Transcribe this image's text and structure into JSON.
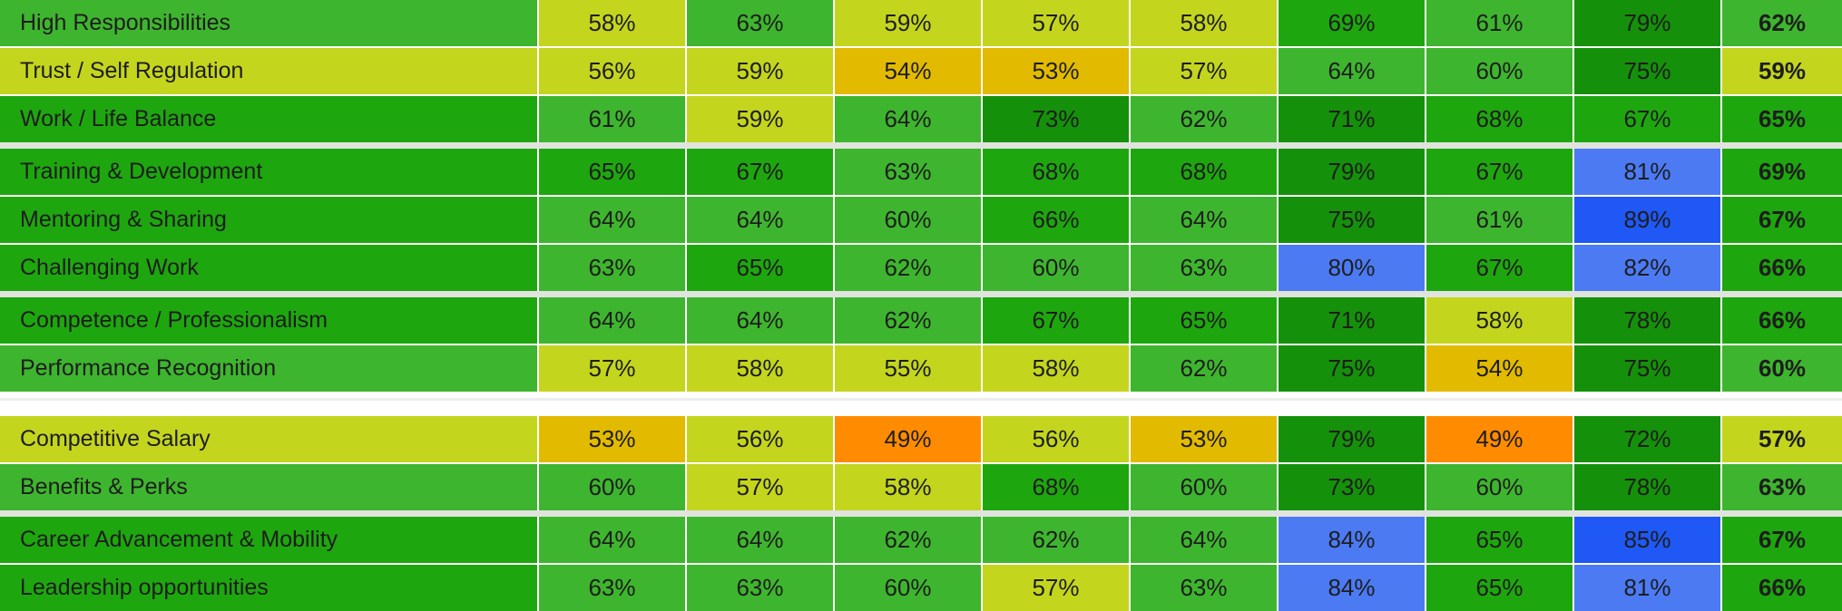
{
  "chart_data": {
    "type": "heatmap",
    "value_suffix": "%",
    "legend": "none",
    "columns_visible": false,
    "rows": [
      {
        "label": "High Responsibilities",
        "values": [
          58,
          63,
          59,
          57,
          58,
          69,
          61,
          79
        ],
        "total": 62
      },
      {
        "label": "Trust / Self Regulation",
        "values": [
          56,
          59,
          54,
          53,
          57,
          64,
          60,
          75
        ],
        "total": 59
      },
      {
        "label": "Work / Life Balance",
        "values": [
          61,
          59,
          64,
          73,
          62,
          71,
          68,
          67
        ],
        "total": 65
      },
      {
        "label": "Training & Development",
        "values": [
          65,
          67,
          63,
          68,
          68,
          79,
          67,
          81
        ],
        "total": 69
      },
      {
        "label": "Mentoring & Sharing",
        "values": [
          64,
          64,
          60,
          66,
          64,
          75,
          61,
          89
        ],
        "total": 67
      },
      {
        "label": "Challenging Work",
        "values": [
          63,
          65,
          62,
          60,
          63,
          80,
          67,
          82
        ],
        "total": 66
      },
      {
        "label": "Competence / Professionalism",
        "values": [
          64,
          64,
          62,
          67,
          65,
          71,
          58,
          78
        ],
        "total": 66
      },
      {
        "label": "Performance Recognition",
        "values": [
          57,
          58,
          55,
          58,
          62,
          75,
          54,
          75
        ],
        "total": 60
      },
      {
        "label": "Competitive Salary",
        "values": [
          53,
          56,
          49,
          56,
          53,
          79,
          49,
          72
        ],
        "total": 57
      },
      {
        "label": "Benefits & Perks",
        "values": [
          60,
          57,
          58,
          68,
          60,
          73,
          60,
          78
        ],
        "total": 63
      },
      {
        "label": "Career Advancement & Mobility",
        "values": [
          64,
          64,
          62,
          62,
          64,
          84,
          65,
          85
        ],
        "total": 67
      },
      {
        "label": "Leadership opportunities",
        "values": [
          63,
          63,
          60,
          57,
          63,
          84,
          65,
          81
        ],
        "total": 66
      }
    ],
    "row_groups": [
      [
        0,
        1,
        2
      ],
      [
        3,
        4,
        5
      ],
      [
        6,
        7
      ],
      [
        8,
        9
      ],
      [
        10,
        11
      ]
    ],
    "separators_after_group": [
      "group",
      "group",
      "section",
      "group"
    ],
    "color_scale": [
      {
        "max": 49,
        "name": "orange",
        "color": "#ff8c00"
      },
      {
        "max": 54,
        "name": "gold",
        "color": "#e2ba00"
      },
      {
        "max": 59,
        "name": "yellow-green",
        "color": "#c4d51e"
      },
      {
        "max": 64,
        "name": "light-green",
        "color": "#3eb52e"
      },
      {
        "max": 69,
        "name": "green",
        "color": "#1ea60f"
      },
      {
        "max": 79,
        "name": "dark-green",
        "color": "#15900a"
      },
      {
        "max": 84,
        "name": "blue",
        "color": "#4b7af3"
      },
      {
        "max": 100,
        "name": "strong-blue",
        "color": "#1f58f4"
      }
    ],
    "text_color": "#1d1d1d",
    "separator_colors": {
      "group_band": "#e1e4de",
      "section_gap": "#ffffff",
      "grid_lines": "#ffffff"
    }
  }
}
